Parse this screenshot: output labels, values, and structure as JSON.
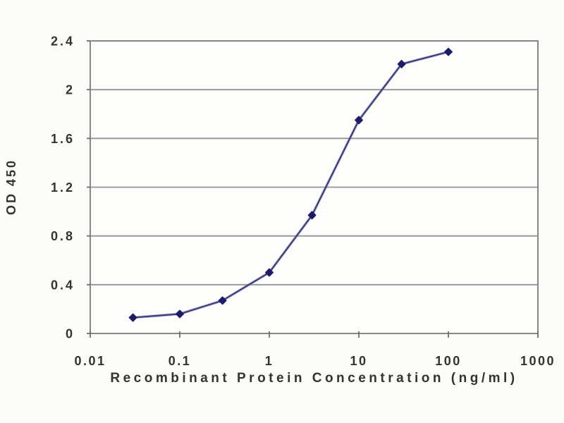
{
  "chart_data": {
    "type": "line",
    "title": "",
    "xlabel": "Recombinant Protein Concentration (ng/ml)",
    "ylabel": "OD 450",
    "x_scale": "log",
    "x": [
      0.03,
      0.1,
      0.3,
      1,
      3,
      10,
      30,
      100
    ],
    "y": [
      0.13,
      0.16,
      0.27,
      0.5,
      0.97,
      1.75,
      2.21,
      2.31
    ],
    "xlim": [
      0.01,
      1000
    ],
    "ylim": [
      0,
      2.4
    ],
    "x_ticks": [
      0.01,
      0.1,
      1,
      10,
      100,
      1000
    ],
    "x_tick_labels": [
      "0.01",
      "0.1",
      "1",
      "10",
      "100",
      "1000"
    ],
    "y_ticks": [
      0,
      0.4,
      0.8,
      1.2,
      1.6,
      2,
      2.4
    ],
    "y_tick_labels": [
      "0",
      "0.4",
      "0.8",
      "1.2",
      "1.6",
      "2",
      "2.4"
    ],
    "grid": "horizontal",
    "legend": "none",
    "marker_shape": "diamond",
    "colors": {
      "line": "#3d3d85",
      "line_halo": "#9090b8",
      "marker": "#1c1c6b",
      "grid": "#949494",
      "frame": "#878787",
      "tick": "#6f6f6f",
      "text": "#333333",
      "background": "#fbfbf8",
      "plot_background": "#fdfdfb"
    }
  }
}
